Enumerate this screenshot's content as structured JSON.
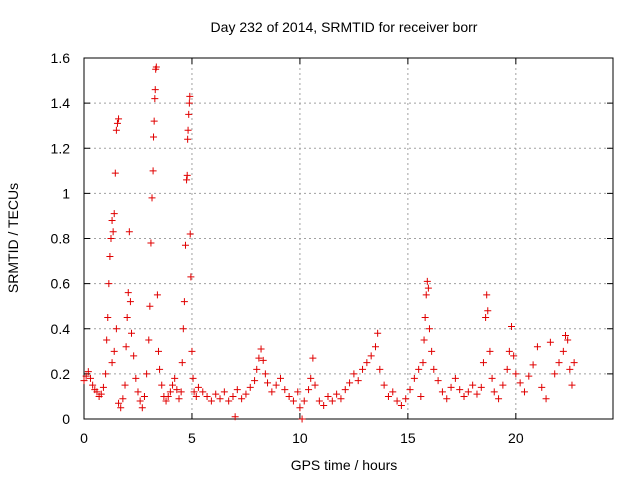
{
  "chart_data": {
    "type": "scatter",
    "title": "Day 232 of 2014, SRMTID for receiver borr",
    "xlabel": "GPS time / hours",
    "ylabel": "SRMTID / TECUs",
    "xlim": [
      0,
      24.5
    ],
    "ylim": [
      0,
      1.6
    ],
    "xticks": [
      0,
      5,
      10,
      15,
      20
    ],
    "xtick_labels": [
      "0",
      "5",
      "10",
      "15",
      "20"
    ],
    "yticks": [
      0,
      0.2,
      0.4,
      0.6,
      0.8,
      1.0,
      1.2,
      1.4,
      1.6
    ],
    "ytick_labels": [
      "0",
      "0.2",
      "0.4",
      "0.6",
      "0.8",
      "1",
      "1.2",
      "1.4",
      "1.6"
    ],
    "grid": true,
    "marker": "plus",
    "marker_color": "#e00000",
    "series": [
      {
        "name": "SRMTID",
        "points": [
          [
            0.0,
            0.17
          ],
          [
            0.1,
            0.19
          ],
          [
            0.2,
            0.21
          ],
          [
            0.3,
            0.18
          ],
          [
            0.4,
            0.15
          ],
          [
            0.5,
            0.13
          ],
          [
            0.6,
            0.12
          ],
          [
            0.7,
            0.1
          ],
          [
            0.8,
            0.11
          ],
          [
            0.9,
            0.14
          ],
          [
            1.0,
            0.2
          ],
          [
            1.05,
            0.35
          ],
          [
            1.1,
            0.45
          ],
          [
            1.15,
            0.6
          ],
          [
            1.2,
            0.72
          ],
          [
            1.25,
            0.8
          ],
          [
            1.3,
            0.88
          ],
          [
            1.35,
            0.83
          ],
          [
            1.4,
            0.91
          ],
          [
            1.45,
            1.09
          ],
          [
            1.5,
            1.28
          ],
          [
            1.55,
            1.31
          ],
          [
            1.6,
            1.33
          ],
          [
            1.5,
            0.4
          ],
          [
            1.4,
            0.3
          ],
          [
            1.3,
            0.25
          ],
          [
            1.6,
            0.07
          ],
          [
            1.7,
            0.05
          ],
          [
            1.8,
            0.09
          ],
          [
            1.9,
            0.15
          ],
          [
            1.95,
            0.32
          ],
          [
            2.0,
            0.45
          ],
          [
            2.05,
            0.56
          ],
          [
            2.1,
            0.83
          ],
          [
            2.15,
            0.52
          ],
          [
            2.2,
            0.38
          ],
          [
            2.3,
            0.28
          ],
          [
            2.4,
            0.18
          ],
          [
            2.5,
            0.12
          ],
          [
            2.6,
            0.08
          ],
          [
            2.7,
            0.05
          ],
          [
            2.8,
            0.1
          ],
          [
            2.9,
            0.2
          ],
          [
            3.0,
            0.35
          ],
          [
            3.05,
            0.5
          ],
          [
            3.1,
            0.78
          ],
          [
            3.15,
            0.98
          ],
          [
            3.2,
            1.1
          ],
          [
            3.22,
            1.25
          ],
          [
            3.25,
            1.32
          ],
          [
            3.28,
            1.42
          ],
          [
            3.3,
            1.46
          ],
          [
            3.32,
            1.55
          ],
          [
            3.35,
            1.56
          ],
          [
            3.4,
            0.55
          ],
          [
            3.45,
            0.3
          ],
          [
            3.5,
            0.22
          ],
          [
            3.6,
            0.15
          ],
          [
            3.7,
            0.1
          ],
          [
            3.8,
            0.08
          ],
          [
            3.9,
            0.1
          ],
          [
            4.0,
            0.12
          ],
          [
            4.1,
            0.15
          ],
          [
            4.2,
            0.18
          ],
          [
            4.3,
            0.13
          ],
          [
            4.4,
            0.09
          ],
          [
            4.5,
            0.12
          ],
          [
            4.55,
            0.25
          ],
          [
            4.6,
            0.4
          ],
          [
            4.65,
            0.52
          ],
          [
            4.7,
            0.77
          ],
          [
            4.75,
            1.06
          ],
          [
            4.78,
            1.08
          ],
          [
            4.8,
            1.24
          ],
          [
            4.82,
            1.28
          ],
          [
            4.85,
            1.35
          ],
          [
            4.88,
            1.4
          ],
          [
            4.9,
            1.43
          ],
          [
            4.92,
            0.82
          ],
          [
            4.95,
            0.63
          ],
          [
            5.0,
            0.3
          ],
          [
            5.05,
            0.18
          ],
          [
            5.1,
            0.12
          ],
          [
            5.2,
            0.1
          ],
          [
            5.3,
            0.14
          ],
          [
            5.5,
            0.12
          ],
          [
            5.7,
            0.1
          ],
          [
            5.9,
            0.08
          ],
          [
            6.1,
            0.11
          ],
          [
            6.3,
            0.09
          ],
          [
            6.5,
            0.12
          ],
          [
            6.7,
            0.08
          ],
          [
            6.9,
            0.1
          ],
          [
            7.0,
            0.01
          ],
          [
            7.1,
            0.13
          ],
          [
            7.3,
            0.09
          ],
          [
            7.5,
            0.11
          ],
          [
            7.7,
            0.14
          ],
          [
            7.9,
            0.17
          ],
          [
            8.0,
            0.22
          ],
          [
            8.1,
            0.27
          ],
          [
            8.2,
            0.31
          ],
          [
            8.3,
            0.26
          ],
          [
            8.4,
            0.2
          ],
          [
            8.5,
            0.16
          ],
          [
            8.7,
            0.12
          ],
          [
            8.9,
            0.15
          ],
          [
            9.1,
            0.18
          ],
          [
            9.3,
            0.13
          ],
          [
            9.5,
            0.1
          ],
          [
            9.7,
            0.08
          ],
          [
            9.9,
            0.12
          ],
          [
            10.0,
            0.05
          ],
          [
            10.1,
            0.0
          ],
          [
            10.2,
            0.08
          ],
          [
            10.4,
            0.13
          ],
          [
            10.5,
            0.18
          ],
          [
            10.6,
            0.27
          ],
          [
            10.7,
            0.15
          ],
          [
            10.9,
            0.08
          ],
          [
            11.1,
            0.06
          ],
          [
            11.3,
            0.1
          ],
          [
            11.5,
            0.08
          ],
          [
            11.7,
            0.11
          ],
          [
            11.9,
            0.09
          ],
          [
            12.1,
            0.13
          ],
          [
            12.3,
            0.16
          ],
          [
            12.5,
            0.2
          ],
          [
            12.7,
            0.17
          ],
          [
            12.9,
            0.22
          ],
          [
            13.1,
            0.25
          ],
          [
            13.3,
            0.28
          ],
          [
            13.5,
            0.32
          ],
          [
            13.6,
            0.38
          ],
          [
            13.7,
            0.22
          ],
          [
            13.9,
            0.15
          ],
          [
            14.1,
            0.1
          ],
          [
            14.3,
            0.12
          ],
          [
            14.5,
            0.08
          ],
          [
            14.7,
            0.06
          ],
          [
            14.9,
            0.09
          ],
          [
            15.1,
            0.13
          ],
          [
            15.3,
            0.18
          ],
          [
            15.5,
            0.22
          ],
          [
            15.6,
            0.1
          ],
          [
            15.7,
            0.25
          ],
          [
            15.75,
            0.35
          ],
          [
            15.8,
            0.45
          ],
          [
            15.85,
            0.55
          ],
          [
            15.9,
            0.61
          ],
          [
            15.95,
            0.58
          ],
          [
            16.0,
            0.4
          ],
          [
            16.1,
            0.3
          ],
          [
            16.2,
            0.22
          ],
          [
            16.4,
            0.17
          ],
          [
            16.6,
            0.12
          ],
          [
            16.8,
            0.09
          ],
          [
            17.0,
            0.14
          ],
          [
            17.2,
            0.18
          ],
          [
            17.4,
            0.13
          ],
          [
            17.6,
            0.1
          ],
          [
            17.8,
            0.12
          ],
          [
            18.0,
            0.15
          ],
          [
            18.2,
            0.11
          ],
          [
            18.4,
            0.14
          ],
          [
            18.5,
            0.25
          ],
          [
            18.6,
            0.45
          ],
          [
            18.65,
            0.55
          ],
          [
            18.7,
            0.48
          ],
          [
            18.8,
            0.3
          ],
          [
            18.9,
            0.18
          ],
          [
            19.0,
            0.12
          ],
          [
            19.2,
            0.09
          ],
          [
            19.4,
            0.15
          ],
          [
            19.6,
            0.22
          ],
          [
            19.7,
            0.3
          ],
          [
            19.8,
            0.41
          ],
          [
            19.9,
            0.28
          ],
          [
            20.0,
            0.2
          ],
          [
            20.2,
            0.16
          ],
          [
            20.4,
            0.12
          ],
          [
            20.6,
            0.19
          ],
          [
            20.8,
            0.24
          ],
          [
            21.0,
            0.32
          ],
          [
            21.2,
            0.14
          ],
          [
            21.4,
            0.09
          ],
          [
            21.6,
            0.34
          ],
          [
            21.8,
            0.2
          ],
          [
            22.0,
            0.25
          ],
          [
            22.2,
            0.3
          ],
          [
            22.3,
            0.37
          ],
          [
            22.4,
            0.35
          ],
          [
            22.5,
            0.22
          ],
          [
            22.6,
            0.15
          ],
          [
            22.7,
            0.25
          ]
        ]
      }
    ]
  }
}
